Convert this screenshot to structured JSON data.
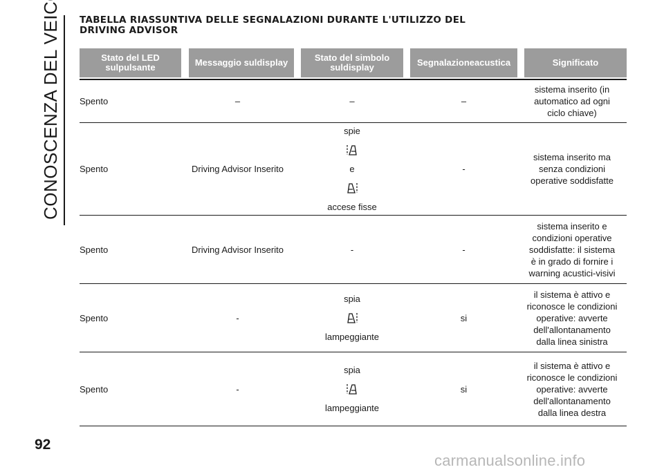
{
  "side_title": "CONOSCENZA DEL VEICOLO",
  "page_number": "92",
  "watermark": "carmanualsonline.info",
  "heading": {
    "line1": "TABELLA RIASSUNTIVA DELLE SEGNALAZIONI DURANTE L'UTILIZZO DEL",
    "line2": "DRIVING ADVISOR"
  },
  "table": {
    "headers": [
      {
        "l1": "Stato del LED sul",
        "l2": "pulsante"
      },
      {
        "l1": "Messaggio sul",
        "l2": "display"
      },
      {
        "l1": "Stato del simbolo sul",
        "l2": "display"
      },
      {
        "l1": "Segnalazione",
        "l2": "acustica"
      },
      {
        "l1": "Significato",
        "l2": ""
      }
    ],
    "rows": [
      {
        "led": "Spento",
        "message": "–",
        "symbol_text": "–",
        "acoustic": "–",
        "meaning": [
          "sistema inserito (in",
          "automatico ad ogni",
          "ciclo chiave)"
        ]
      },
      {
        "led": "Spento",
        "message": "Driving Advisor Inserito",
        "symbol_top": "spie",
        "symbol_mid": "e",
        "symbol_bottom": "accese fisse",
        "icons": [
          "lane-right-icon",
          "lane-left-icon"
        ],
        "acoustic": "-",
        "meaning": [
          "sistema inserito ma",
          "senza condizioni",
          "operative soddisfatte"
        ]
      },
      {
        "led": "Spento",
        "message": "Driving Advisor Inserito",
        "symbol_text": "-",
        "acoustic": "-",
        "meaning": [
          "sistema inserito e",
          "condizioni operative",
          "soddisfatte: il sistema",
          "è in grado di fornire i",
          "warning acustici-visivi"
        ]
      },
      {
        "led": "Spento",
        "message": "-",
        "symbol_top": "spia",
        "symbol_bottom": "lampeggiante",
        "icons": [
          "lane-left-icon"
        ],
        "acoustic": "si",
        "meaning": [
          "il sistema è attivo e",
          "riconosce le condizioni",
          "operative: avverte",
          "dell'allontanamento",
          "dalla linea sinistra"
        ]
      },
      {
        "led": "Spento",
        "message": "-",
        "symbol_top": "spia",
        "symbol_bottom": "lampeggiante",
        "icons": [
          "lane-right-icon"
        ],
        "acoustic": "si",
        "meaning": [
          "il sistema è attivo e",
          "riconosce le condizioni",
          "operative: avverte",
          "dell'allontanamento",
          "dalla linea destra"
        ]
      }
    ]
  }
}
